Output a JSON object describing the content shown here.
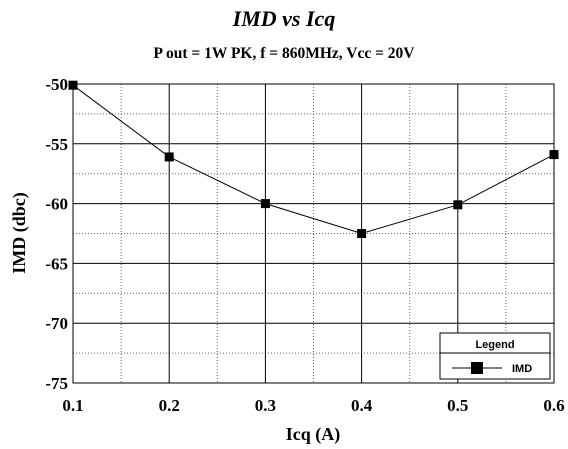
{
  "chart_data": {
    "type": "line",
    "title": "IMD vs Icq",
    "subtitle": "P out = 1W PK, f = 860MHz, Vcc = 20V",
    "xlabel": "Icq (A)",
    "ylabel": "IMD (dbc)",
    "xlim": [
      0.1,
      0.6
    ],
    "ylim": [
      -75,
      -50
    ],
    "x_ticks": [
      "0.1",
      "0.2",
      "0.3",
      "0.4",
      "0.5",
      "0.6"
    ],
    "y_ticks": [
      "-50",
      "-55",
      "-60",
      "-65",
      "-70",
      "-75"
    ],
    "grid": true,
    "legend": {
      "title": "Legend",
      "position": "bottom-right"
    },
    "series": [
      {
        "name": "IMD",
        "color": "#000000",
        "marker": "square",
        "x": [
          0.1,
          0.2,
          0.3,
          0.4,
          0.5,
          0.6
        ],
        "y": [
          -50.1,
          -56.1,
          -60.0,
          -62.5,
          -60.1,
          -55.9
        ]
      }
    ]
  }
}
